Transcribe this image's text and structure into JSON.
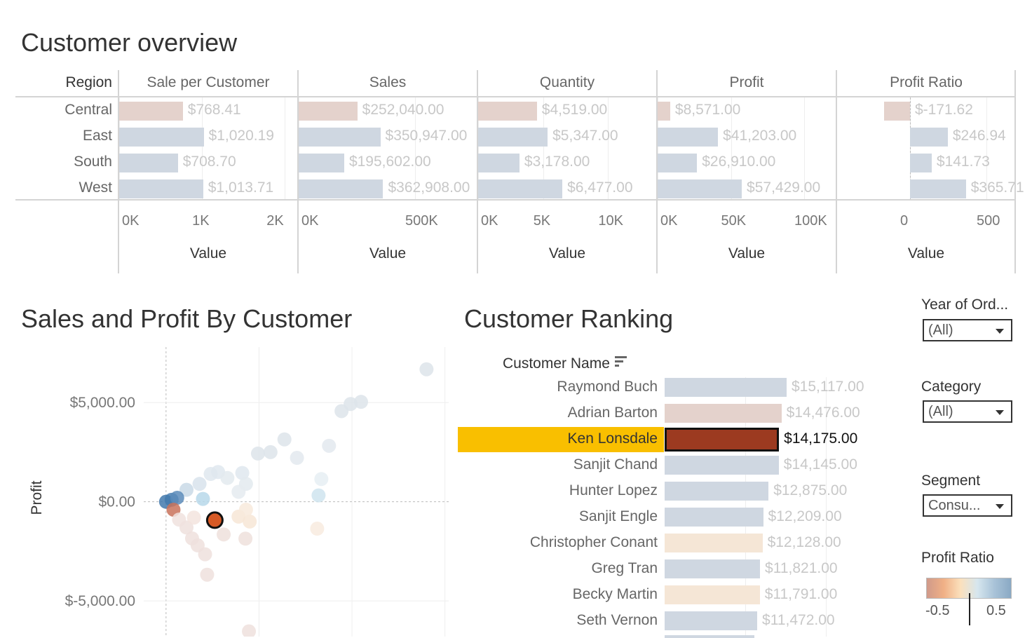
{
  "overview": {
    "title": "Customer overview",
    "row_header": "Region",
    "regions": [
      "Central",
      "East",
      "South",
      "West"
    ],
    "region_colors": [
      "#e4d2cc",
      "#cfd7e1",
      "#cfd7e1",
      "#cfd7e1"
    ],
    "panels": [
      {
        "header": "Sale per Customer",
        "axis_label": "Value",
        "domain": [
          0,
          2150
        ],
        "ticks": [
          {
            "v": 0,
            "label": "0K"
          },
          {
            "v": 1000,
            "label": "1K"
          },
          {
            "v": 2000,
            "label": "2K"
          }
        ],
        "values": [
          768.41,
          1020.19,
          708.7,
          1013.71
        ],
        "labels": [
          "$768.41",
          "$1,020.19",
          "$708.70",
          "$1,013.71"
        ]
      },
      {
        "header": "Sales",
        "axis_label": "Value",
        "domain": [
          0,
          765000
        ],
        "ticks": [
          {
            "v": 0,
            "label": "0K"
          },
          {
            "v": 500000,
            "label": "500K"
          }
        ],
        "values": [
          252040,
          350947,
          195602,
          362908
        ],
        "labels": [
          "$252,040.00",
          "$350,947.00",
          "$195,602.00",
          "$362,908.00"
        ]
      },
      {
        "header": "Quantity",
        "axis_label": "Value",
        "domain": [
          0,
          13700
        ],
        "ticks": [
          {
            "v": 0,
            "label": "0K"
          },
          {
            "v": 5000,
            "label": "5K"
          },
          {
            "v": 10000,
            "label": "10K"
          }
        ],
        "values": [
          4519,
          5347,
          3178,
          6477
        ],
        "labels": [
          "$4,519.00",
          "$5,347.00",
          "$3,178.00",
          "$6,477.00"
        ]
      },
      {
        "header": "Profit",
        "axis_label": "Value",
        "domain": [
          0,
          121500
        ],
        "ticks": [
          {
            "v": 0,
            "label": "0K"
          },
          {
            "v": 50000,
            "label": "50K"
          },
          {
            "v": 100000,
            "label": "100K"
          }
        ],
        "values": [
          8571,
          41203,
          26910,
          57429
        ],
        "labels": [
          "$8,571.00",
          "$41,203.00",
          "$26,910.00",
          "$57,429.00"
        ]
      },
      {
        "header": "Profit Ratio",
        "axis_label": "Value",
        "domain": [
          -477,
          688
        ],
        "ticks": [
          {
            "v": 0,
            "label": "0"
          },
          {
            "v": 500,
            "label": "500"
          }
        ],
        "values": [
          -171.62,
          246.94,
          141.73,
          365.71
        ],
        "labels": [
          "$-171.62",
          "$246.94",
          "$141.73",
          "$365.71"
        ]
      }
    ]
  },
  "scatter": {
    "title": "Sales and Profit By Customer",
    "chart_data": {
      "type": "scatter",
      "ylabel": "Profit",
      "xlim": [
        -1200,
        15200
      ],
      "ylim": [
        -6800,
        7800
      ],
      "x_grid": [
        0,
        5000,
        10000,
        15000
      ],
      "y_ticks": [
        {
          "v": 5000,
          "label": "$5,000.00"
        },
        {
          "v": 0,
          "label": "$0.00"
        },
        {
          "v": -5000,
          "label": "$-5,000.00"
        }
      ],
      "points": [
        {
          "x": 14007,
          "y": 6679,
          "c": "#dde4ea"
        },
        {
          "x": 9438,
          "y": 4571,
          "c": "#dde4ea"
        },
        {
          "x": 9925,
          "y": 4929,
          "c": "#dde4ea"
        },
        {
          "x": 10487,
          "y": 5036,
          "c": "#dde4ea"
        },
        {
          "x": 6367,
          "y": 3143,
          "c": "#dde4ea"
        },
        {
          "x": 4944,
          "y": 2429,
          "c": "#dde4ea"
        },
        {
          "x": 5618,
          "y": 2500,
          "c": "#dde4ea"
        },
        {
          "x": 7041,
          "y": 2214,
          "c": "#e3e9ee"
        },
        {
          "x": 8764,
          "y": 2821,
          "c": "#e3e9ee"
        },
        {
          "x": 8352,
          "y": 1143,
          "c": "#e6eff3"
        },
        {
          "x": 8202,
          "y": 321,
          "c": "#cfe4ee"
        },
        {
          "x": 2400,
          "y": 1400,
          "c": "#dfe7ee"
        },
        {
          "x": 2800,
          "y": 1500,
          "c": "#dfe7ee"
        },
        {
          "x": 4100,
          "y": 1450,
          "c": "#dfe7ee"
        },
        {
          "x": 4300,
          "y": 900,
          "c": "#e3eaef"
        },
        {
          "x": 3300,
          "y": 1200,
          "c": "#e3eaef"
        },
        {
          "x": 1800,
          "y": 900,
          "c": "#d8e3ec"
        },
        {
          "x": 1100,
          "y": 600,
          "c": "#c9d9e6"
        },
        {
          "x": 3900,
          "y": 500,
          "c": "#e5ebf0"
        },
        {
          "x": 1985,
          "y": 143,
          "c": "#b7d8ea"
        },
        {
          "x": 300,
          "y": 100,
          "c": "#4a7fb1"
        },
        {
          "x": 0,
          "y": 0,
          "c": "#4279ad"
        },
        {
          "x": 600,
          "y": 200,
          "c": "#5a8bba"
        },
        {
          "x": 400,
          "y": -400,
          "c": "#c9725b"
        },
        {
          "x": 2622,
          "y": -929,
          "c": "#d75a26"
        },
        {
          "x": 3900,
          "y": -750,
          "c": "#f7e6d6"
        },
        {
          "x": 4500,
          "y": -1000,
          "c": "#f7e6d6"
        },
        {
          "x": 4300,
          "y": -400,
          "c": "#f8eadc"
        },
        {
          "x": 3100,
          "y": -1650,
          "c": "#efe0dc"
        },
        {
          "x": 4270,
          "y": -1860,
          "c": "#efe0dc"
        },
        {
          "x": 8127,
          "y": -1357,
          "c": "#f8ebdf"
        },
        {
          "x": 1100,
          "y": -1300,
          "c": "#efe1dd"
        },
        {
          "x": 1400,
          "y": -1850,
          "c": "#efe1dd"
        },
        {
          "x": 1700,
          "y": -2200,
          "c": "#efe1dd"
        },
        {
          "x": 2100,
          "y": -2650,
          "c": "#efe1dd"
        },
        {
          "x": 2210,
          "y": -3679,
          "c": "#efe1dd"
        },
        {
          "x": 4457,
          "y": -6536,
          "c": "#efe1dd"
        },
        {
          "x": 700,
          "y": -900,
          "c": "#f0e2de"
        },
        {
          "x": 1500,
          "y": -800,
          "c": "#f3e4de"
        }
      ],
      "selected": {
        "x": 2622,
        "y": -929,
        "c": "#d75a26"
      }
    }
  },
  "ranking": {
    "title": "Customer Ranking",
    "column_header": "Customer Name",
    "sort_icon": "sort-descending-icon",
    "domain_max": 23000,
    "grid": [
      10000,
      20000
    ],
    "rows": [
      {
        "name": "Raymond Buch",
        "value": 15117,
        "label": "$15,117.00",
        "color": "#cfd7e1"
      },
      {
        "name": "Adrian Barton",
        "value": 14476,
        "label": "$14,476.00",
        "color": "#e4d2cc"
      },
      {
        "name": "Ken Lonsdale",
        "value": 14175,
        "label": "$14,175.00",
        "color": "#9c3a20",
        "selected": true
      },
      {
        "name": "Sanjit Chand",
        "value": 14145,
        "label": "$14,145.00",
        "color": "#cfd7e1"
      },
      {
        "name": "Hunter Lopez",
        "value": 12875,
        "label": "$12,875.00",
        "color": "#cfd7e1"
      },
      {
        "name": "Sanjit Engle",
        "value": 12209,
        "label": "$12,209.00",
        "color": "#cfd7e1"
      },
      {
        "name": "Christopher Conant",
        "value": 12128,
        "label": "$12,128.00",
        "color": "#f5e6d6"
      },
      {
        "name": "Greg Tran",
        "value": 11821,
        "label": "$11,821.00",
        "color": "#cfd7e1"
      },
      {
        "name": "Becky Martin",
        "value": 11791,
        "label": "$11,791.00",
        "color": "#f5e6d6"
      },
      {
        "name": "Seth Vernon",
        "value": 11472,
        "label": "$11,472.00",
        "color": "#cfd7e1"
      }
    ],
    "highlight_color": "#f9bf00"
  },
  "filters": [
    {
      "title": "Year of Ord...",
      "value": "(All)"
    },
    {
      "title": "Category",
      "value": "(All)"
    },
    {
      "title": "Segment",
      "value": "Consu..."
    }
  ],
  "legend": {
    "title": "Profit Ratio",
    "min_label": "-0.5",
    "max_label": "0.5",
    "gradient": [
      "#d09a8a",
      "#f0b086",
      "#fbe0bc",
      "#d6e6ee",
      "#a9c3d8",
      "#8aa9c4"
    ]
  }
}
